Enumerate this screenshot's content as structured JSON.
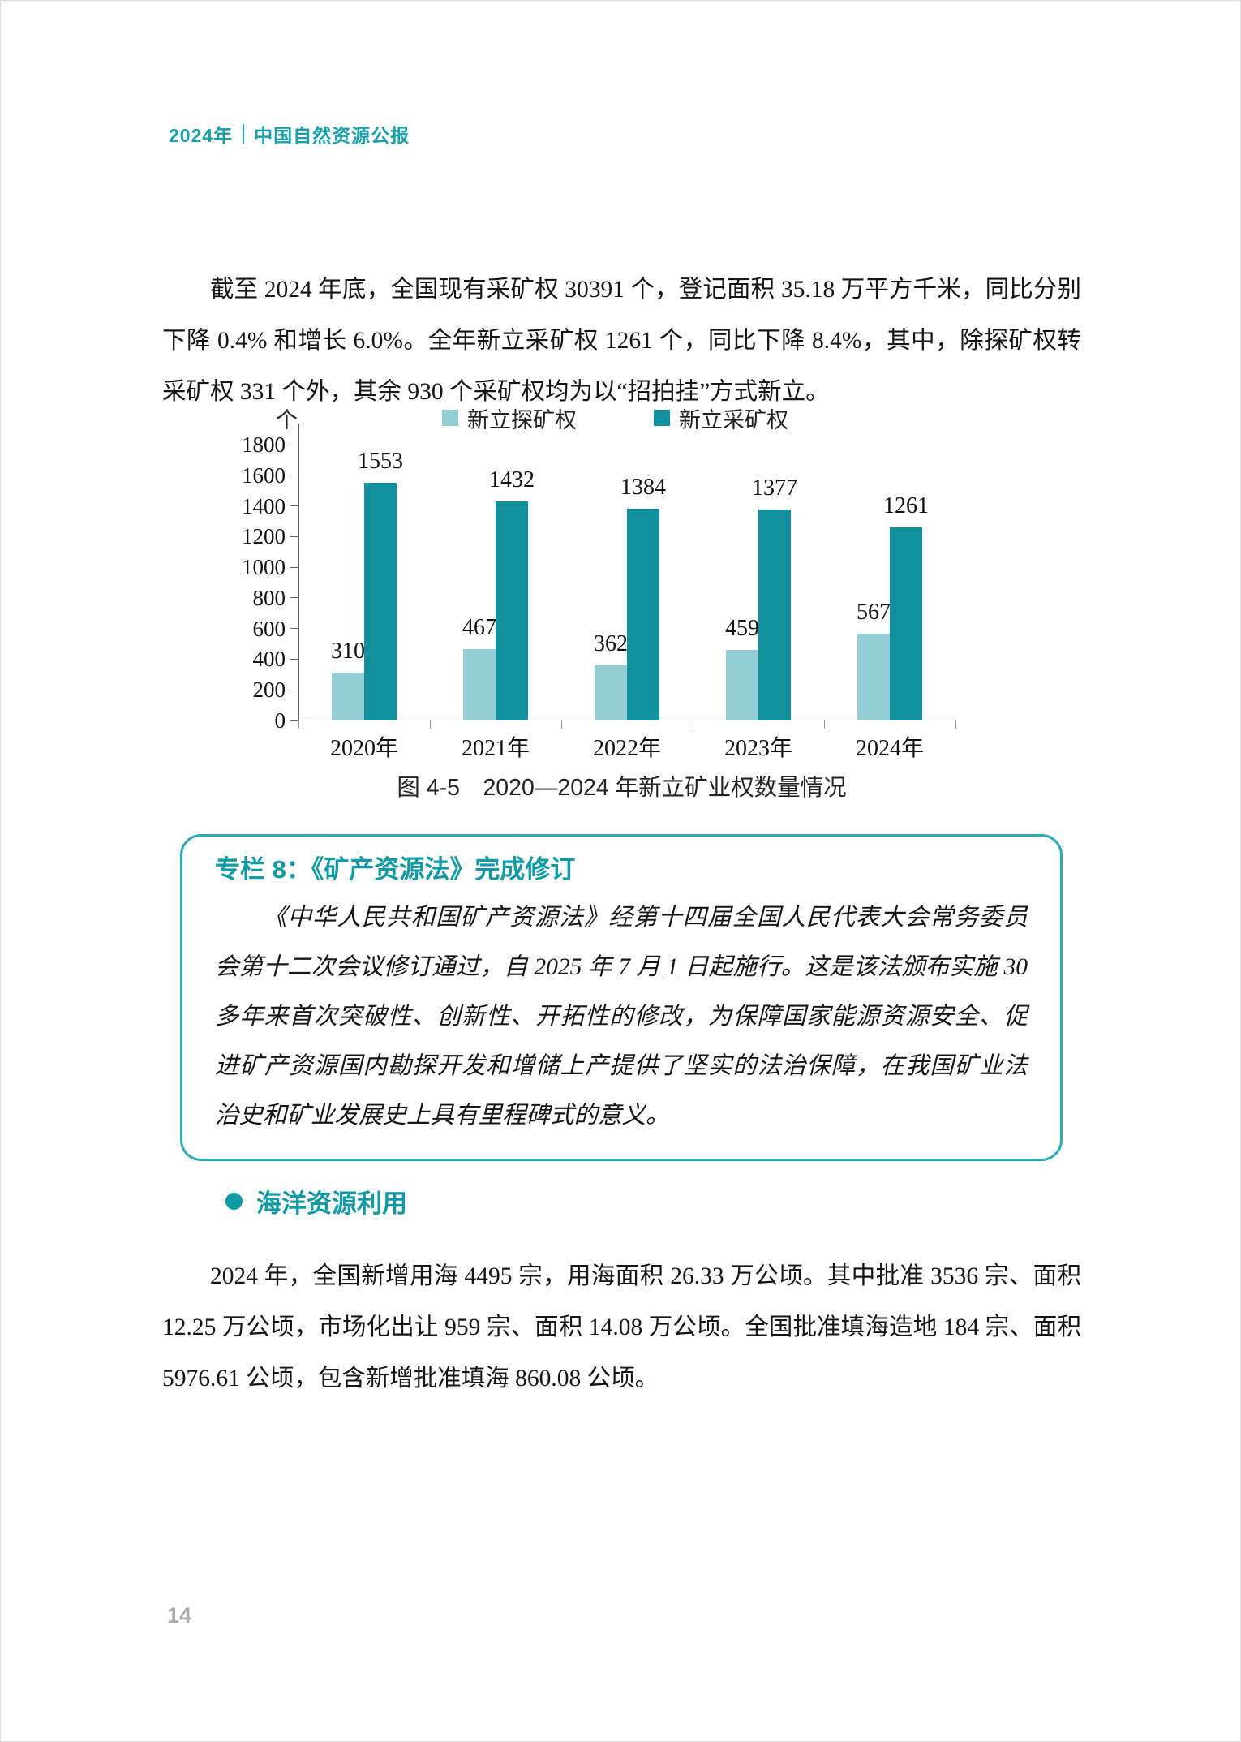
{
  "header": {
    "year": "2024年",
    "title": "中国自然资源公报"
  },
  "paragraph1": "截至 2024 年底，全国现有采矿权 30391 个，登记面积 35.18 万平方千米，同比分别下降 0.4% 和增长 6.0%。全年新立采矿权 1261 个，同比下降 8.4%，其中，除探矿权转采矿权 331 个外，其余 930 个采矿权均为以“招拍挂”方式新立。",
  "chart_data": {
    "type": "bar",
    "title": "图 4-5　2020—2024 年新立矿业权数量情况",
    "unit_label": "个",
    "categories": [
      "2020年",
      "2021年",
      "2022年",
      "2023年",
      "2024年"
    ],
    "series": [
      {
        "name": "新立探矿权",
        "color": "#93cdd5",
        "values": [
          310,
          467,
          362,
          459,
          567
        ]
      },
      {
        "name": "新立采矿权",
        "color": "#12909e",
        "values": [
          1553,
          1432,
          1384,
          1377,
          1261
        ]
      }
    ],
    "ylim": [
      0,
      1800
    ],
    "ytick_step": 200,
    "legend_position": "top",
    "grid": false,
    "value_labels": true
  },
  "callout": {
    "title": "专栏 8：《矿产资源法》完成修订",
    "body": "《中华人民共和国矿产资源法》经第十四届全国人民代表大会常务委员会第十二次会议修订通过，自 2025 年 7 月 1 日起施行。这是该法颁布实施 30 多年来首次突破性、创新性、开拓性的修改，为保障国家能源资源安全、促进矿产资源国内勘探开发和增储上产提供了坚实的法治保障，在我国矿业法治史和矿业发展史上具有里程碑式的意义。"
  },
  "section": {
    "title": "海洋资源利用"
  },
  "paragraph2": "2024 年，全国新增用海 4495 宗，用海面积 26.33 万公顷。其中批准 3536 宗、面积 12.25 万公顷，市场化出让 959 宗、面积 14.08 万公顷。全国批准填海造地 184 宗、面积 5976.61 公顷，包含新增批准填海 860.08 公顷。",
  "page_number": "14",
  "colors": {
    "accent": "#129ba5",
    "box_border": "#2ba9b4",
    "bar_light": "#93cdd5",
    "bar_dark": "#12909e",
    "page_number_gray": "#ababab"
  }
}
